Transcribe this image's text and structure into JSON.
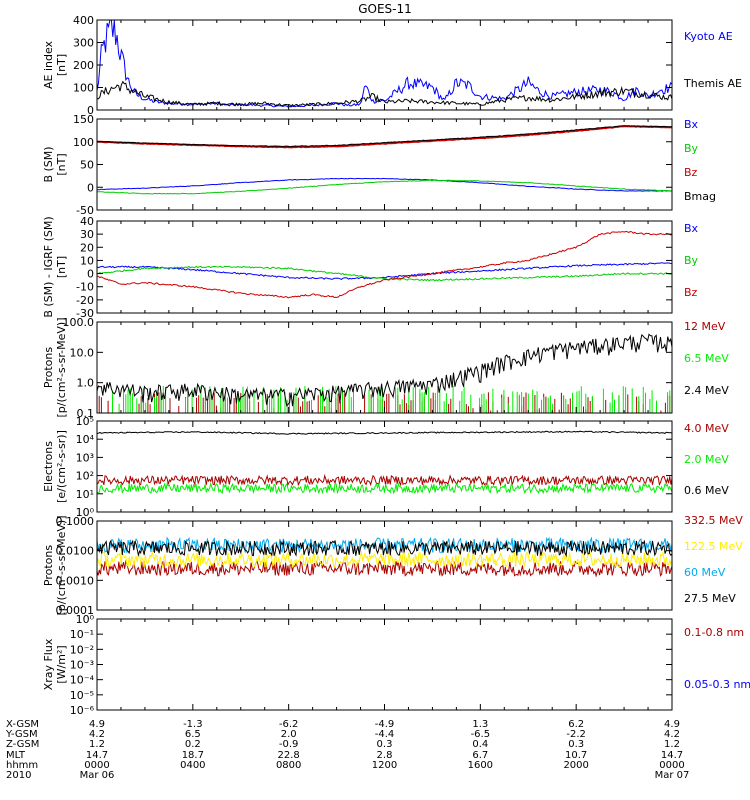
{
  "title": "GOES-11",
  "chart_data": [
    {
      "type": "line",
      "panel": "ae-index",
      "ylabel": "AE index",
      "yunits": "[nT]",
      "ylim": [
        0,
        400
      ],
      "ylog": false,
      "yticks": [
        "400",
        "300",
        "200",
        "100",
        "0"
      ],
      "ytick_values": [
        400,
        300,
        200,
        100,
        0
      ],
      "x_hours": [
        0,
        24
      ],
      "series": [
        {
          "name": "Kyoto AE",
          "color": "#0000ff",
          "x": [
            0,
            0.2,
            0.4,
            0.6,
            0.8,
            1.0,
            1.3,
            1.6,
            2.0,
            2.5,
            3.0,
            4.0,
            5.0,
            5.5,
            6.0,
            7.0,
            8.0,
            9.0,
            10.0,
            10.5,
            11.0,
            11.2,
            11.5,
            12.0,
            13.0,
            14.0,
            14.5,
            15.0,
            15.5,
            16.0,
            17.0,
            18.0,
            18.5,
            19.0,
            20.0,
            21.0,
            21.5,
            22.0,
            22.5,
            23.0,
            23.5,
            24.0
          ],
          "values": [
            80,
            250,
            320,
            360,
            340,
            240,
            130,
            70,
            50,
            35,
            30,
            25,
            30,
            20,
            25,
            20,
            15,
            20,
            30,
            20,
            25,
            110,
            40,
            40,
            120,
            100,
            40,
            120,
            110,
            60,
            50,
            120,
            80,
            60,
            80,
            90,
            80,
            50,
            90,
            60,
            90,
            100
          ]
        },
        {
          "name": "Themis AE",
          "color": "#000000",
          "x": [
            0,
            0.5,
            1.0,
            1.5,
            2.0,
            3.0,
            4.0,
            5.0,
            6.0,
            7.0,
            8.0,
            9.0,
            10.0,
            11.0,
            11.5,
            12.0,
            13.0,
            14.0,
            15.0,
            16.0,
            17.0,
            18.0,
            19.0,
            20.0,
            21.0,
            21.5,
            22.0,
            22.5,
            23.0,
            23.5,
            24.0
          ],
          "values": [
            60,
            90,
            110,
            85,
            60,
            35,
            25,
            30,
            25,
            30,
            20,
            25,
            30,
            40,
            60,
            35,
            40,
            35,
            30,
            25,
            45,
            55,
            45,
            60,
            75,
            80,
            85,
            75,
            70,
            60,
            55
          ]
        }
      ]
    },
    {
      "type": "line",
      "panel": "b-field",
      "ylabel": "B (SM)",
      "yunits": "[nT]",
      "ylim": [
        -50,
        150
      ],
      "ylog": false,
      "yticks": [
        "150",
        "100",
        "50",
        "0",
        "-50"
      ],
      "ytick_values": [
        150,
        100,
        50,
        0,
        -50
      ],
      "x_hours": [
        0,
        24
      ],
      "series": [
        {
          "name": "Bx",
          "color": "#0000ff",
          "x": [
            0,
            2,
            4,
            6,
            8,
            10,
            12,
            14,
            16,
            18,
            20,
            22,
            24
          ],
          "values": [
            -5,
            -2,
            3,
            10,
            16,
            19,
            19,
            16,
            10,
            2,
            -4,
            -8,
            -8
          ]
        },
        {
          "name": "By",
          "color": "#00cc00",
          "x": [
            0,
            2,
            4,
            6,
            8,
            10,
            12,
            14,
            16,
            18,
            20,
            22,
            24
          ],
          "values": [
            -10,
            -14,
            -14,
            -9,
            -2,
            6,
            12,
            15,
            14,
            10,
            3,
            -4,
            -8
          ]
        },
        {
          "name": "Bz",
          "color": "#cc0000",
          "x": [
            0,
            2,
            4,
            6,
            8,
            10,
            12,
            14,
            16,
            18,
            20,
            22,
            24
          ],
          "values": [
            100,
            96,
            93,
            90,
            88,
            90,
            96,
            102,
            108,
            115,
            124,
            134,
            132
          ]
        },
        {
          "name": "Bmag",
          "color": "#000000",
          "x": [
            0,
            2,
            4,
            6,
            8,
            10,
            12,
            14,
            16,
            18,
            20,
            22,
            24
          ],
          "values": [
            101,
            97,
            94,
            91,
            90,
            92,
            98,
            104,
            110,
            117,
            126,
            135,
            133
          ]
        }
      ]
    },
    {
      "type": "line",
      "panel": "b-minus-igrf",
      "ylabel": "B (SM) - IGRF (SM)",
      "yunits": "[nT]",
      "ylim": [
        -30,
        40
      ],
      "ylog": false,
      "yticks": [
        "40",
        "30",
        "20",
        "10",
        "0",
        "-10",
        "-20",
        "-30"
      ],
      "ytick_values": [
        40,
        30,
        20,
        10,
        0,
        -10,
        -20,
        -30
      ],
      "x_hours": [
        0,
        24
      ],
      "series": [
        {
          "name": "Bx",
          "color": "#0000ff",
          "x": [
            0,
            2,
            4,
            6,
            8,
            10,
            12,
            14,
            16,
            18,
            20,
            22,
            24
          ],
          "values": [
            5,
            5,
            3,
            0,
            -3,
            -4,
            -3,
            0,
            2,
            4,
            6,
            7,
            8
          ]
        },
        {
          "name": "By",
          "color": "#00cc00",
          "x": [
            0,
            2,
            4,
            6,
            8,
            10,
            12,
            14,
            16,
            18,
            20,
            22,
            24
          ],
          "values": [
            0,
            4,
            5,
            5,
            4,
            0,
            -4,
            -5,
            -4,
            -3,
            -2,
            0,
            0
          ]
        },
        {
          "name": "Bz",
          "color": "#cc0000",
          "x": [
            0,
            1,
            2,
            4,
            6,
            8,
            9,
            10,
            11,
            12,
            14,
            16,
            17,
            18,
            19,
            20,
            21,
            22,
            23,
            24
          ],
          "values": [
            -2,
            -8,
            -7,
            -10,
            -15,
            -18,
            -16,
            -18,
            -10,
            -5,
            0,
            5,
            8,
            10,
            15,
            20,
            30,
            32,
            30,
            30
          ]
        }
      ]
    },
    {
      "type": "line",
      "panel": "protons-low",
      "ylabel": "Protons",
      "yunits": "[p/(cm²-s-sr-MeV)]",
      "ylim": [
        0.1,
        100
      ],
      "ylog": true,
      "yticks": [
        "100.0",
        "10.0",
        "1.0",
        "0.1"
      ],
      "ytick_values": [
        100,
        10,
        1,
        0.1
      ],
      "x_hours": [
        0,
        24
      ],
      "series": [
        {
          "name": "12 MeV",
          "color": "#aa0000",
          "noise": "spiky-floor",
          "level": 0.12
        },
        {
          "name": "6.5 MeV",
          "color": "#00ee00",
          "noise": "spiky-floor",
          "level": 0.2
        },
        {
          "name": "2.4 MeV",
          "color": "#000000",
          "x": [
            0,
            2,
            4,
            6,
            8,
            10,
            12,
            14,
            15,
            16,
            17,
            18,
            19,
            20,
            21,
            22,
            23,
            24
          ],
          "values": [
            0.8,
            0.5,
            0.6,
            0.4,
            0.4,
            0.5,
            0.7,
            0.9,
            1.5,
            2.5,
            5,
            8,
            12,
            15,
            18,
            22,
            25,
            20
          ]
        }
      ]
    },
    {
      "type": "line",
      "panel": "electrons",
      "ylabel": "Electrons",
      "yunits": "[e/(cm²-s-sr)]",
      "ylim": [
        1,
        100000
      ],
      "ylog": true,
      "yticks": [
        "10⁵",
        "10⁴",
        "10³",
        "10²",
        "10¹",
        "10⁰"
      ],
      "ytick_values": [
        100000,
        10000,
        1000,
        100,
        10,
        1
      ],
      "x_hours": [
        0,
        24
      ],
      "series": [
        {
          "name": "4.0 MeV",
          "color": "#aa0000",
          "noise": "band",
          "level": 55
        },
        {
          "name": "2.0 MeV",
          "color": "#00ee00",
          "noise": "band",
          "level": 20
        },
        {
          "name": "0.6 MeV",
          "color": "#000000",
          "x": [
            0,
            4,
            8,
            12,
            16,
            20,
            24
          ],
          "values": [
            22000,
            25000,
            20000,
            22000,
            24000,
            26000,
            22000
          ]
        }
      ]
    },
    {
      "type": "line",
      "panel": "protons-high",
      "ylabel": "Protons",
      "yunits": "[p/(cm²-s-sr-MeV)]",
      "ylim": [
        0.0001,
        0.1
      ],
      "ylog": true,
      "yticks": [
        "0.1000",
        "0.0100",
        "0.0010",
        "0.0001"
      ],
      "ytick_values": [
        0.1,
        0.01,
        0.001,
        0.0001
      ],
      "x_hours": [
        0,
        24
      ],
      "series": [
        {
          "name": "332.5 MeV",
          "color": "#aa0000",
          "noise": "band",
          "level": 0.0025
        },
        {
          "name": "122.5 MeV",
          "color": "#ffee00",
          "noise": "band",
          "level": 0.005
        },
        {
          "name": "60 MeV",
          "color": "#00aaee",
          "noise": "band",
          "level": 0.015
        },
        {
          "name": "27.5 MeV",
          "color": "#000000",
          "noise": "band",
          "level": 0.012
        }
      ]
    },
    {
      "type": "line",
      "panel": "xray",
      "ylabel": "Xray Flux",
      "yunits": "[W/m²]",
      "ylim": [
        1e-06,
        1
      ],
      "ylog": true,
      "yticks": [
        "10⁰",
        "10⁻¹",
        "10⁻²",
        "10⁻³",
        "10⁻⁴",
        "10⁻⁵",
        "10⁻⁶"
      ],
      "ytick_values": [
        1,
        0.1,
        0.01,
        0.001,
        0.0001,
        1e-05,
        1e-06
      ],
      "x_hours": [
        0,
        24
      ],
      "series": [
        {
          "name": "0.1-0.8 nm",
          "color": "#aa0000"
        },
        {
          "name": "0.05-0.3 nm",
          "color": "#0000ff"
        }
      ]
    }
  ],
  "bottom_axis": {
    "row_labels": [
      "X-GSM",
      "Y-GSM",
      "Z-GSM",
      "MLT",
      "hhmm",
      "2010"
    ],
    "columns": [
      {
        "x_hours": 0,
        "values": [
          "4.9",
          "4.2",
          "1.2",
          "14.7",
          "0000",
          "Mar 06"
        ]
      },
      {
        "x_hours": 4,
        "values": [
          "-1.3",
          "6.5",
          "0.2",
          "18.7",
          "0400",
          ""
        ]
      },
      {
        "x_hours": 8,
        "values": [
          "-6.2",
          "2.0",
          "-0.9",
          "22.8",
          "0800",
          ""
        ]
      },
      {
        "x_hours": 12,
        "values": [
          "-4.9",
          "-4.4",
          "0.3",
          "2.8",
          "1200",
          ""
        ]
      },
      {
        "x_hours": 16,
        "values": [
          "1.3",
          "-6.5",
          "0.4",
          "6.7",
          "1600",
          ""
        ]
      },
      {
        "x_hours": 20,
        "values": [
          "6.2",
          "-2.2",
          "0.3",
          "10.7",
          "2000",
          ""
        ]
      },
      {
        "x_hours": 24,
        "values": [
          "4.9",
          "4.2",
          "1.2",
          "14.7",
          "0000",
          "Mar 07"
        ]
      }
    ]
  }
}
